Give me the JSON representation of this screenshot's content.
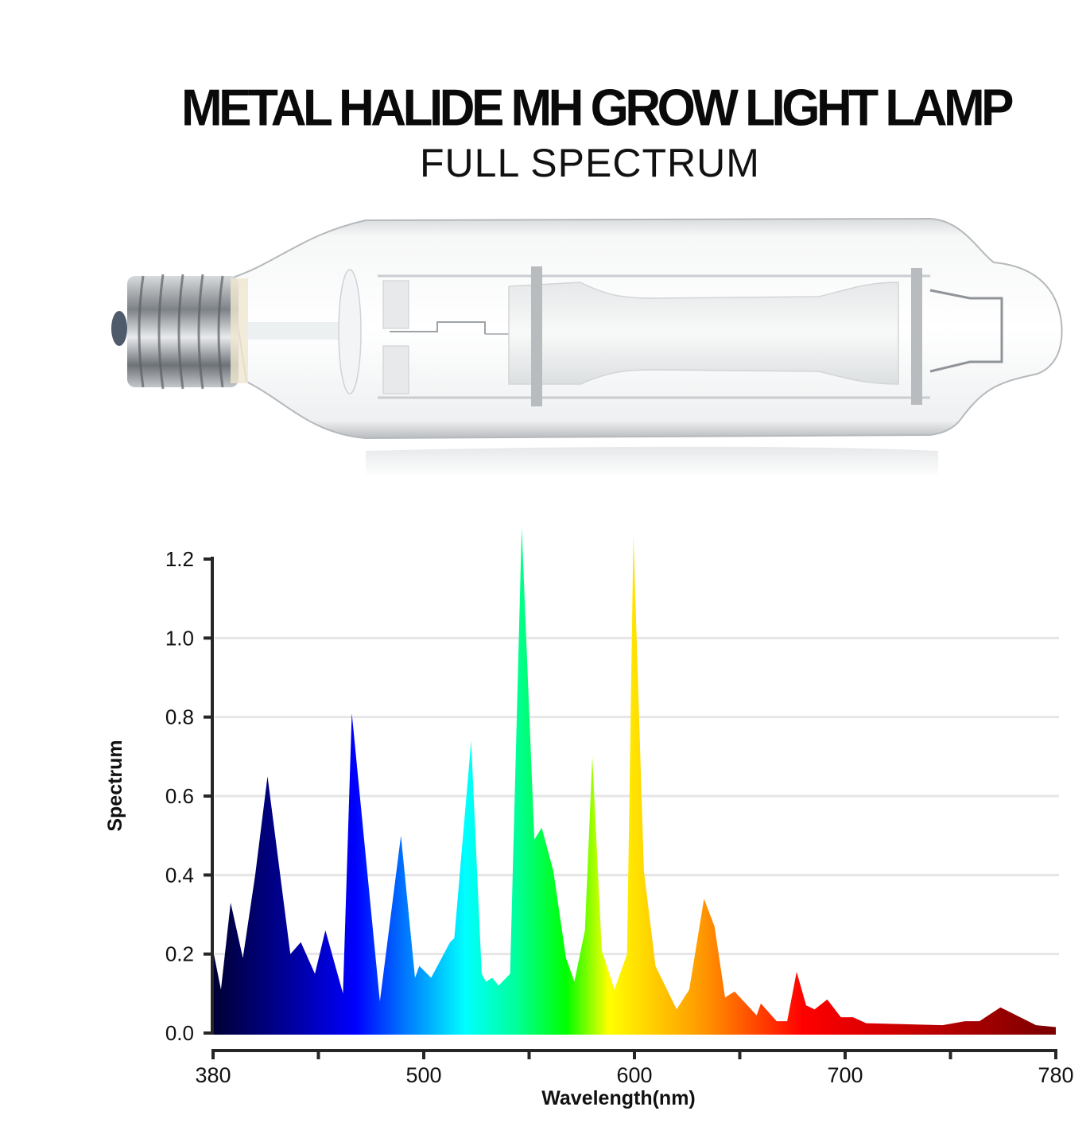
{
  "header": {
    "title": "METAL HALIDE MH GROW LIGHT LAMP",
    "subtitle": "FULL SPECTRUM"
  },
  "product_image": {
    "icon": "metal-halide-lamp-icon",
    "glass_color": "#e9eced",
    "base_color": "#9a9ea2"
  },
  "chart_data": {
    "type": "area",
    "title": "",
    "xlabel": "Wavelength(nm)",
    "ylabel": "Spectrum",
    "ylim": [
      0,
      1.2
    ],
    "xlim": [
      380,
      780
    ],
    "grid": true,
    "legend": "none",
    "y_ticks": [
      "0.0",
      "0.2",
      "0.4",
      "0.6",
      "0.8",
      "1.0",
      "1.2"
    ],
    "x_ticks": [
      "380",
      "",
      "500",
      "",
      "600",
      "",
      "700",
      "",
      "780"
    ],
    "fill": "spectral-gradient",
    "gradient_stops": [
      {
        "offset": 0.0,
        "color": "#000033"
      },
      {
        "offset": 0.09,
        "color": "#000099"
      },
      {
        "offset": 0.17,
        "color": "#0000ff"
      },
      {
        "offset": 0.22,
        "color": "#0066ff"
      },
      {
        "offset": 0.3,
        "color": "#00ffff"
      },
      {
        "offset": 0.36,
        "color": "#00ff99"
      },
      {
        "offset": 0.42,
        "color": "#00ff00"
      },
      {
        "offset": 0.47,
        "color": "#ffff00"
      },
      {
        "offset": 0.58,
        "color": "#ff9900"
      },
      {
        "offset": 0.7,
        "color": "#ff0000"
      },
      {
        "offset": 1.0,
        "color": "#7a0000"
      }
    ],
    "points": [
      {
        "x": 380,
        "y": 0.21
      },
      {
        "x": 384.5,
        "y": 0.11
      },
      {
        "x": 390,
        "y": 0.33
      },
      {
        "x": 397,
        "y": 0.19
      },
      {
        "x": 404,
        "y": 0.4
      },
      {
        "x": 411,
        "y": 0.65
      },
      {
        "x": 424,
        "y": 0.2
      },
      {
        "x": 430,
        "y": 0.23
      },
      {
        "x": 438,
        "y": 0.15
      },
      {
        "x": 444,
        "y": 0.26
      },
      {
        "x": 454,
        "y": 0.1
      },
      {
        "x": 459,
        "y": 0.81
      },
      {
        "x": 475,
        "y": 0.08
      },
      {
        "x": 487,
        "y": 0.5
      },
      {
        "x": 495,
        "y": 0.14
      },
      {
        "x": 497.5,
        "y": 0.17
      },
      {
        "x": 503.5,
        "y": 0.14
      },
      {
        "x": 512.5,
        "y": 0.23
      },
      {
        "x": 514.5,
        "y": 0.24
      },
      {
        "x": 522.5,
        "y": 0.74
      },
      {
        "x": 527.5,
        "y": 0.15
      },
      {
        "x": 529.5,
        "y": 0.13
      },
      {
        "x": 532.5,
        "y": 0.14
      },
      {
        "x": 535.5,
        "y": 0.12
      },
      {
        "x": 541,
        "y": 0.15
      },
      {
        "x": 546.5,
        "y": 1.28
      },
      {
        "x": 552.5,
        "y": 0.49
      },
      {
        "x": 556,
        "y": 0.52
      },
      {
        "x": 561.5,
        "y": 0.41
      },
      {
        "x": 567.5,
        "y": 0.19
      },
      {
        "x": 571.5,
        "y": 0.13
      },
      {
        "x": 576.5,
        "y": 0.26
      },
      {
        "x": 580,
        "y": 0.7
      },
      {
        "x": 584.5,
        "y": 0.21
      },
      {
        "x": 590.5,
        "y": 0.11
      },
      {
        "x": 596.5,
        "y": 0.2
      },
      {
        "x": 599.5,
        "y": 1.26
      },
      {
        "x": 604.5,
        "y": 0.41
      },
      {
        "x": 610,
        "y": 0.17
      },
      {
        "x": 620,
        "y": 0.06
      },
      {
        "x": 626,
        "y": 0.11
      },
      {
        "x": 633,
        "y": 0.34
      },
      {
        "x": 638,
        "y": 0.27
      },
      {
        "x": 643,
        "y": 0.09
      },
      {
        "x": 647.5,
        "y": 0.105
      },
      {
        "x": 658,
        "y": 0.045
      },
      {
        "x": 660,
        "y": 0.075
      },
      {
        "x": 667.5,
        "y": 0.03
      },
      {
        "x": 672.5,
        "y": 0.03
      },
      {
        "x": 677,
        "y": 0.155
      },
      {
        "x": 681.5,
        "y": 0.07
      },
      {
        "x": 685.5,
        "y": 0.06
      },
      {
        "x": 691.5,
        "y": 0.085
      },
      {
        "x": 698,
        "y": 0.04
      },
      {
        "x": 703,
        "y": 0.04
      },
      {
        "x": 708,
        "y": 0.025
      },
      {
        "x": 737,
        "y": 0.02
      },
      {
        "x": 745.5,
        "y": 0.03
      },
      {
        "x": 751,
        "y": 0.03
      },
      {
        "x": 759,
        "y": 0.065
      },
      {
        "x": 772.5,
        "y": 0.02
      },
      {
        "x": 780,
        "y": 0.015
      }
    ]
  }
}
